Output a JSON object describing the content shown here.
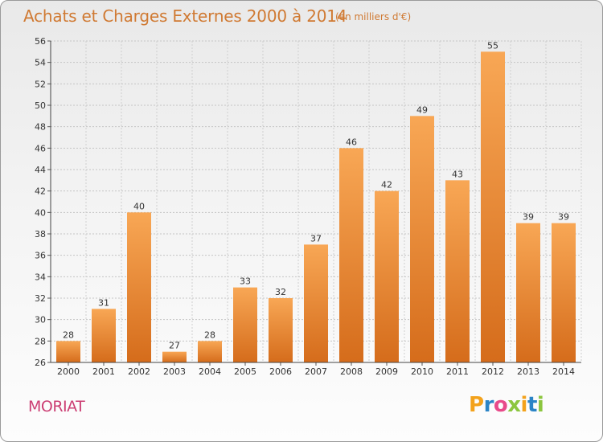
{
  "header": {
    "title": "Achats et Charges Externes 2000 à 2014",
    "subtitle": "(en milliers d'€)"
  },
  "footer": {
    "commune": "MORIAT",
    "logo": "Proxiti"
  },
  "colors": {
    "title": "#d07a33",
    "commune": "#cc3f74",
    "bar_top": "#f7a550",
    "bar_bottom": "#d86e1c"
  },
  "chart_data": {
    "type": "bar",
    "title": "Achats et Charges Externes 2000 à 2014",
    "subtitle": "(en milliers d'€)",
    "categories": [
      "2000",
      "2001",
      "2002",
      "2003",
      "2004",
      "2005",
      "2006",
      "2007",
      "2008",
      "2009",
      "2010",
      "2011",
      "2012",
      "2013",
      "2014"
    ],
    "values": [
      28,
      31,
      40,
      27,
      28,
      33,
      32,
      37,
      46,
      42,
      49,
      43,
      55,
      39,
      39
    ],
    "ylim": [
      26,
      56
    ],
    "yticks": [
      26,
      28,
      30,
      32,
      34,
      36,
      38,
      40,
      42,
      44,
      46,
      48,
      50,
      52,
      54,
      56
    ],
    "grid": true,
    "data_labels": true
  }
}
